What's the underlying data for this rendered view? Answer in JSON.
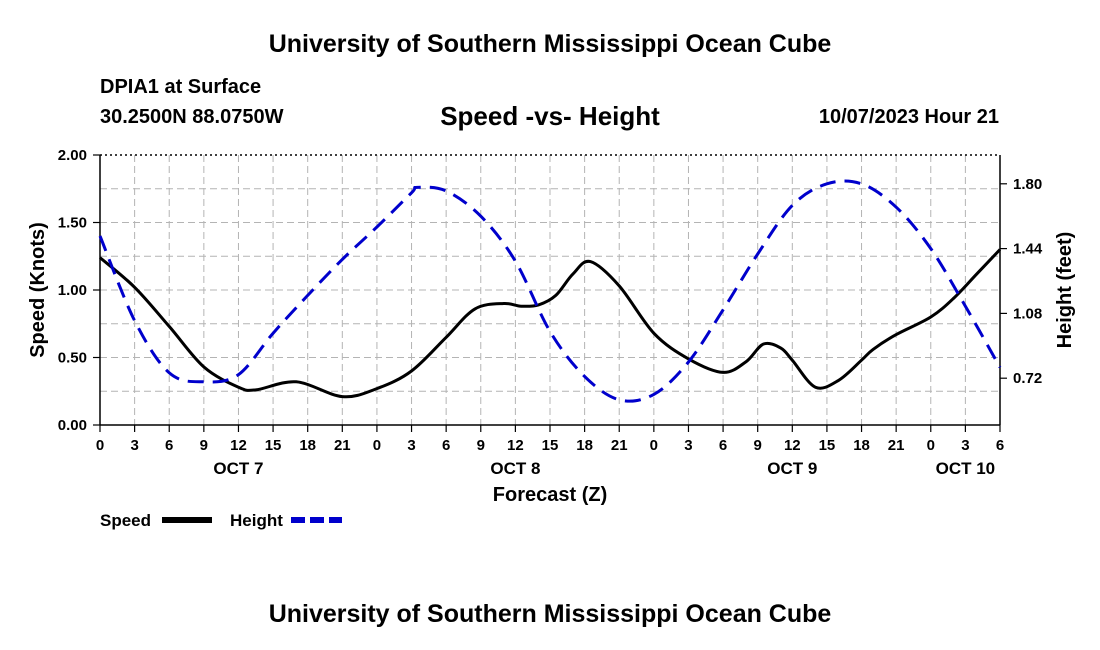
{
  "header": {
    "title": "University of Southern Mississippi Ocean Cube",
    "station": "DPIA1 at Surface",
    "coords": "30.2500N  88.0750W",
    "subtitle": "Speed -vs- Height",
    "datetime": "10/07/2023 Hour 21"
  },
  "footer": {
    "title": "University of Southern Mississippi Ocean Cube"
  },
  "chart_data": {
    "type": "line",
    "title": "Speed -vs- Height",
    "xlabel": "Forecast (Z)",
    "ylabel": "Speed (Knots)",
    "y2label": "Height (feet)",
    "xlim": [
      0,
      78
    ],
    "ylim": [
      0,
      2.0
    ],
    "y2lim": [
      0.46,
      1.96
    ],
    "grid": true,
    "x_ticks": [
      0,
      3,
      6,
      9,
      12,
      15,
      18,
      21,
      24,
      27,
      30,
      33,
      36,
      39,
      42,
      45,
      48,
      51,
      54,
      57,
      60,
      63,
      66,
      69,
      72,
      75,
      78
    ],
    "x_tick_labels": [
      "0",
      "3",
      "6",
      "9",
      "12",
      "15",
      "18",
      "21",
      "0",
      "3",
      "6",
      "9",
      "12",
      "15",
      "18",
      "21",
      "0",
      "3",
      "6",
      "9",
      "12",
      "15",
      "18",
      "21",
      "0",
      "3",
      "6"
    ],
    "day_labels": [
      {
        "x": 12,
        "label": "OCT 7"
      },
      {
        "x": 36,
        "label": "OCT 8"
      },
      {
        "x": 60,
        "label": "OCT 9"
      },
      {
        "x": 75,
        "label": "OCT 10"
      }
    ],
    "y_ticks": [
      0,
      0.5,
      1.0,
      1.5,
      2.0
    ],
    "y_tick_labels": [
      "0.00",
      "0.50",
      "1.00",
      "1.50",
      "2.00"
    ],
    "y2_ticks": [
      0.72,
      1.08,
      1.44,
      1.8
    ],
    "y2_tick_labels": [
      "0.72",
      "1.08",
      "1.44",
      "1.80"
    ],
    "legend": [
      {
        "name": "Speed",
        "color": "#000000",
        "dash": "solid"
      },
      {
        "name": "Height",
        "color": "#0000cc",
        "dash": "dashed"
      }
    ],
    "series": [
      {
        "name": "Speed",
        "axis": "left",
        "color": "#000000",
        "x": [
          0,
          3,
          6,
          9,
          12,
          13.5,
          17,
          21,
          24,
          27,
          30,
          32.5,
          35,
          36.5,
          38,
          39.5,
          41,
          42.5,
          45,
          48,
          51,
          54,
          56,
          57.5,
          59,
          60,
          62,
          64,
          66,
          67,
          69,
          72,
          74,
          76,
          78
        ],
        "values": [
          1.24,
          1.02,
          0.73,
          0.43,
          0.28,
          0.26,
          0.32,
          0.21,
          0.27,
          0.4,
          0.65,
          0.86,
          0.9,
          0.88,
          0.89,
          0.96,
          1.12,
          1.21,
          1.03,
          0.68,
          0.49,
          0.39,
          0.47,
          0.6,
          0.57,
          0.48,
          0.28,
          0.33,
          0.48,
          0.56,
          0.67,
          0.8,
          0.94,
          1.12,
          1.3
        ]
      },
      {
        "name": "Height",
        "axis": "right",
        "color": "#0000cc",
        "x": [
          0,
          3,
          6,
          9,
          12,
          15,
          18,
          21,
          24,
          27,
          27.5,
          30,
          33,
          36,
          39,
          42,
          45,
          48,
          51,
          54,
          57,
          60,
          63,
          66,
          69,
          72,
          75,
          78
        ],
        "values": [
          1.51,
          1.04,
          0.75,
          0.7,
          0.74,
          0.97,
          1.18,
          1.38,
          1.56,
          1.75,
          1.78,
          1.76,
          1.62,
          1.37,
          0.98,
          0.73,
          0.6,
          0.63,
          0.81,
          1.1,
          1.41,
          1.68,
          1.8,
          1.8,
          1.67,
          1.44,
          1.12,
          0.78
        ]
      }
    ]
  }
}
